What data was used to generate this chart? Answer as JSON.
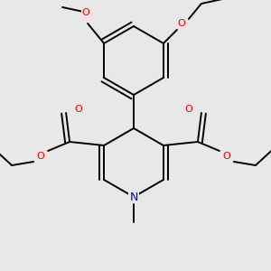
{
  "bg_color": "#e8e8e8",
  "bond_color": "#000000",
  "o_color": "#ee0000",
  "n_color": "#0000cc",
  "lw": 1.4,
  "fs": 7.5,
  "dbg": 0.012,
  "figsize": [
    3.0,
    3.0
  ],
  "dpi": 100,
  "xlim": [
    0,
    300
  ],
  "ylim": [
    0,
    300
  ]
}
